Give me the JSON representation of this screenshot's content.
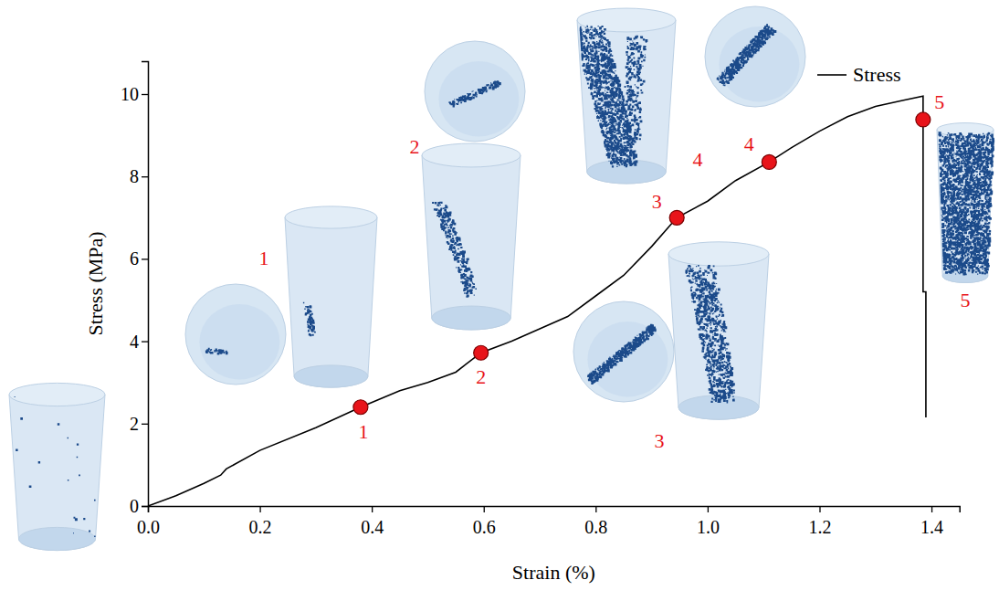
{
  "chart_data": {
    "type": "line",
    "x_label": "Strain (%)",
    "y_label": "Stress (MPa)",
    "xlim": [
      0,
      1.45
    ],
    "xticks": [
      {
        "value": 0,
        "label": "0.0"
      },
      0.2,
      0.4,
      0.6,
      0.8,
      {
        "value": 1,
        "label": "1.0"
      },
      1.2,
      1.4
    ],
    "ylim": [
      0,
      10.8
    ],
    "yticks": [
      0,
      2,
      4,
      6,
      8,
      10
    ],
    "grid": false,
    "legend": "top-right",
    "series": [
      {
        "name": "Stress",
        "type": "line",
        "color": "#000000",
        "line_style": "solid",
        "x": [
          0,
          0.05,
          0.1,
          0.13,
          0.14,
          0.2,
          0.3,
          0.38,
          0.45,
          0.5,
          0.55,
          0.595,
          0.65,
          0.7,
          0.75,
          0.8,
          0.85,
          0.9,
          0.945,
          1.0,
          1.05,
          1.11,
          1.15,
          1.2,
          1.25,
          1.3,
          1.35,
          1.385,
          1.385,
          1.39,
          1.39
        ],
        "values": [
          0,
          0.25,
          0.55,
          0.75,
          0.9,
          1.35,
          1.9,
          2.4,
          2.8,
          3.0,
          3.25,
          3.72,
          4.0,
          4.3,
          4.6,
          5.1,
          5.6,
          6.3,
          7.0,
          7.4,
          7.9,
          8.35,
          8.7,
          9.1,
          9.45,
          9.7,
          9.85,
          9.95,
          5.2,
          5.2,
          2.15
        ]
      }
    ],
    "points": {
      "type": "scatter",
      "marker": "circle",
      "color": "#e8141a",
      "x": [
        0.38,
        0.595,
        0.945,
        1.11,
        1.385
      ],
      "values": [
        2.4,
        3.72,
        7.0,
        8.35,
        9.38
      ],
      "labels": [
        "1",
        "2",
        "3",
        "4",
        "5"
      ]
    }
  }
}
